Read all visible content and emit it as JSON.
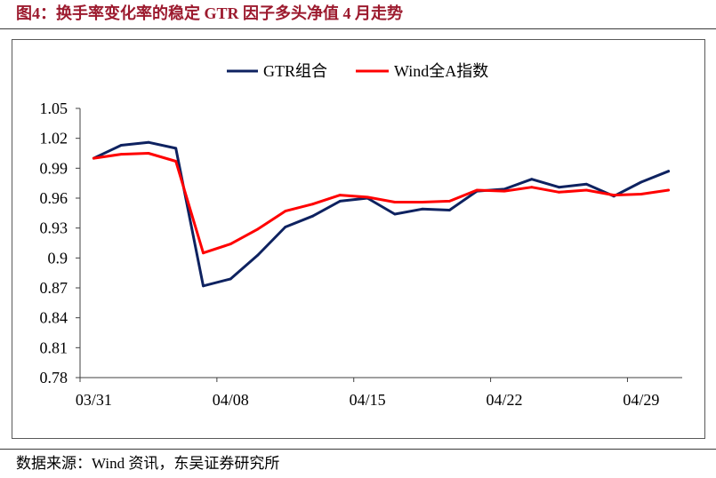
{
  "chart_data": {
    "type": "line",
    "title": "图4：换手率变化率的稳定 GTR 因子多头净值 4 月走势",
    "categories": [
      "03/31",
      "",
      "",
      "",
      "",
      "04/08",
      "",
      "",
      "",
      "",
      "04/15",
      "",
      "",
      "",
      "",
      "04/22",
      "",
      "",
      "",
      "",
      "04/29",
      ""
    ],
    "ylim": [
      0.78,
      1.05
    ],
    "yticks": [
      0.78,
      0.81,
      0.84,
      0.87,
      0.9,
      0.93,
      0.96,
      0.99,
      1.02,
      1.05
    ],
    "grid": false,
    "legend": "top-center",
    "series": [
      {
        "name": "GTR组合",
        "color": "#0e2260",
        "values": [
          1.0,
          1.013,
          1.016,
          1.01,
          0.872,
          0.879,
          0.903,
          0.931,
          0.942,
          0.957,
          0.96,
          0.944,
          0.949,
          0.948,
          0.967,
          0.969,
          0.979,
          0.971,
          0.974,
          0.962,
          0.976,
          0.987
        ]
      },
      {
        "name": "Wind全A指数",
        "color": "#ff0000",
        "values": [
          1.0,
          1.004,
          1.005,
          0.997,
          0.905,
          0.914,
          0.929,
          0.947,
          0.954,
          0.963,
          0.961,
          0.956,
          0.956,
          0.957,
          0.968,
          0.967,
          0.971,
          0.966,
          0.968,
          0.963,
          0.964,
          0.968
        ]
      }
    ]
  },
  "footer": {
    "source": "数据来源：Wind 资讯，东吴证券研究所"
  },
  "colors": {
    "caption": "#9c1a2e",
    "axis": "#404040",
    "frame": "#595959"
  }
}
